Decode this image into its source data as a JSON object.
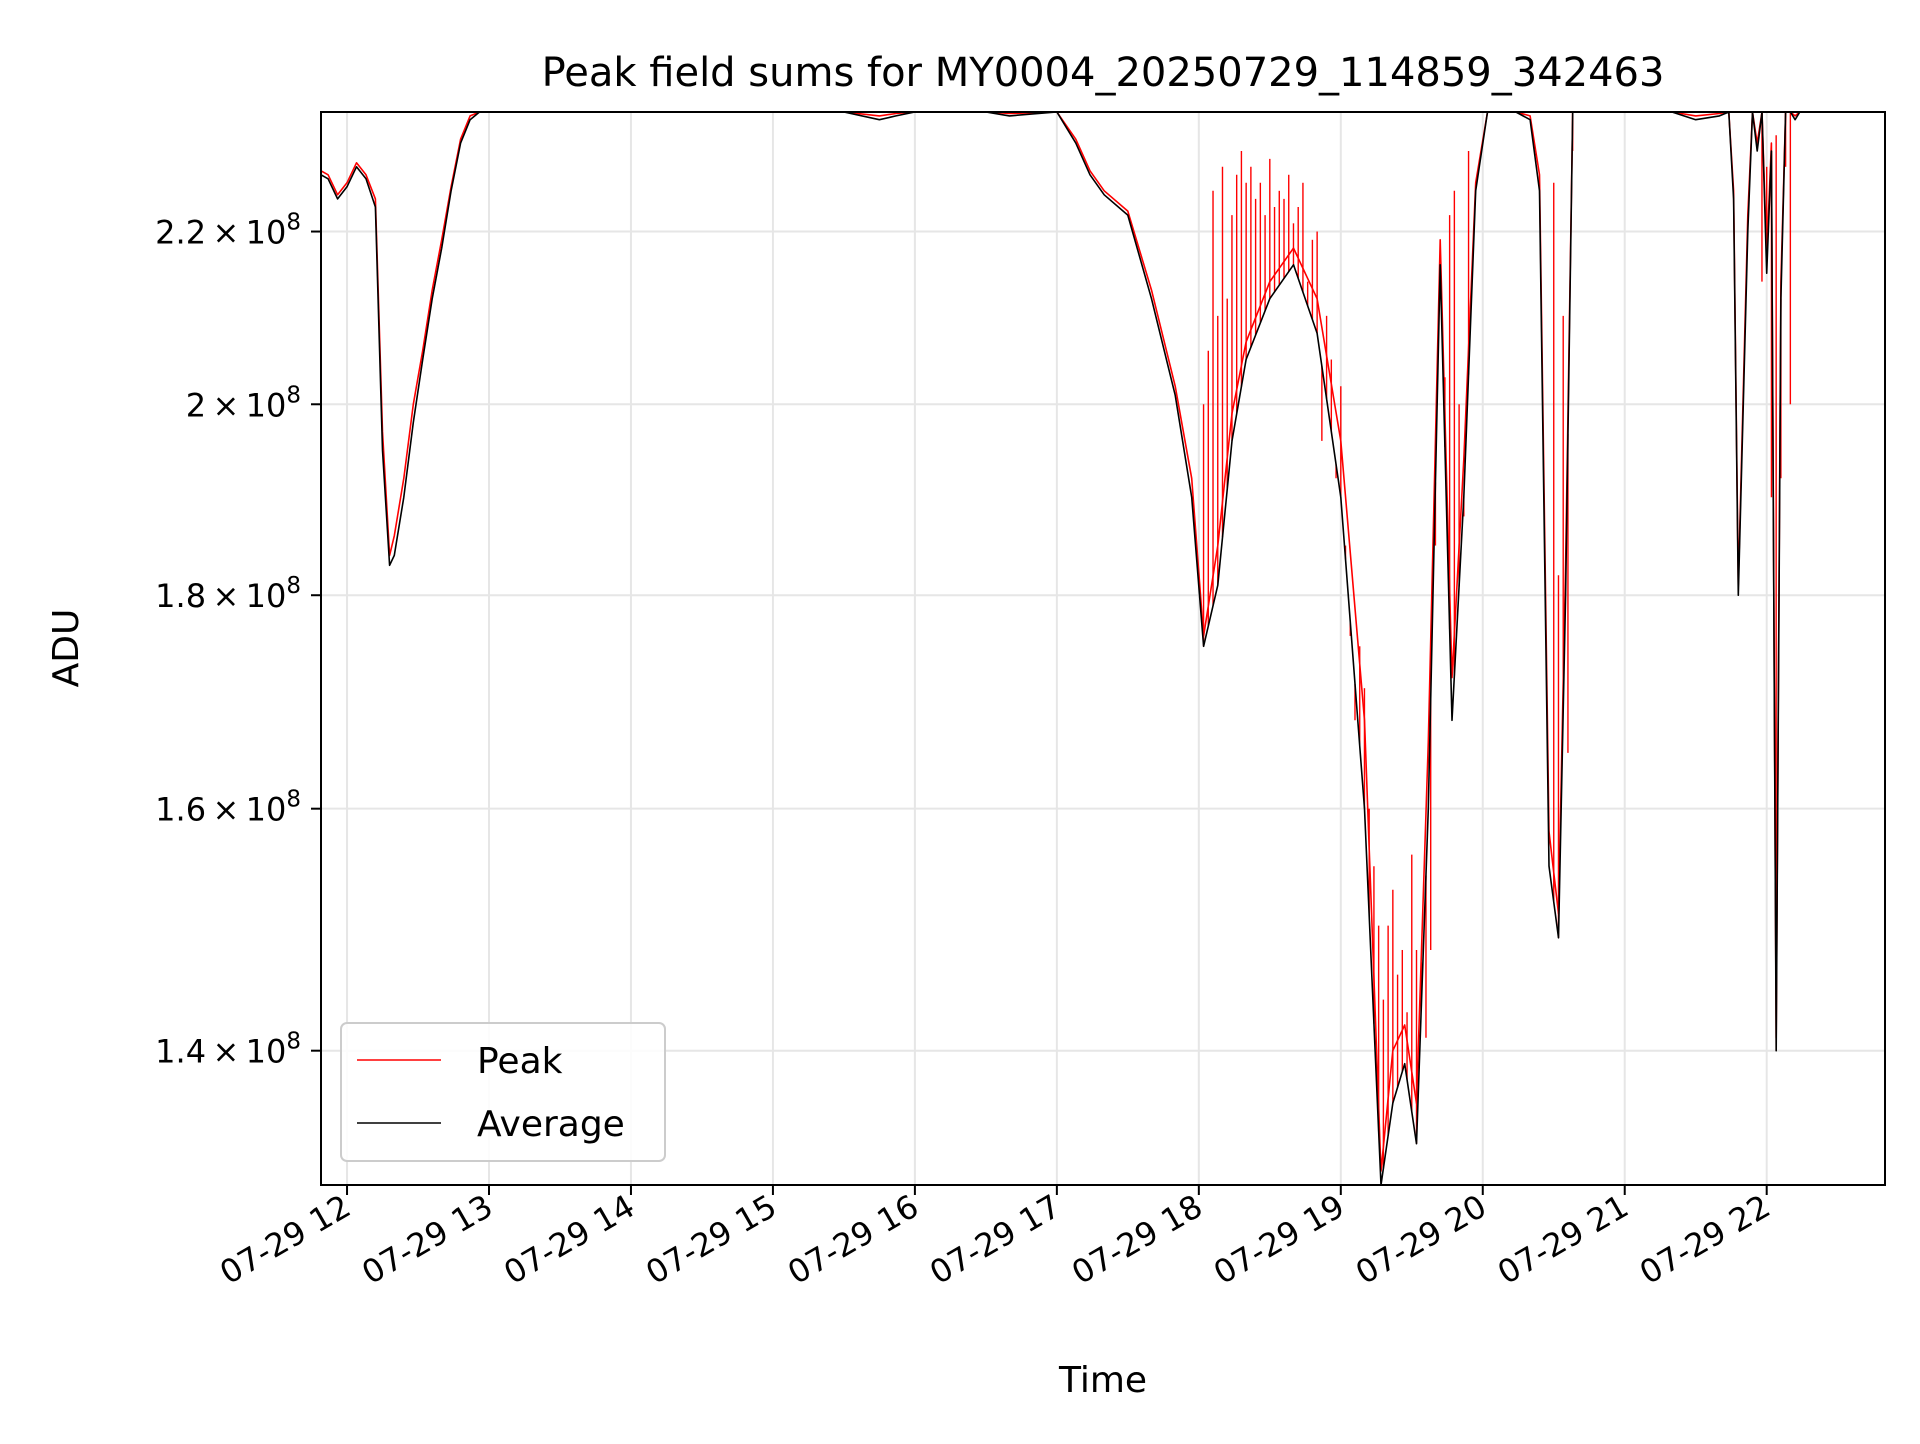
{
  "chart_data": {
    "type": "line",
    "title": "Peak field sums for MY0004_20250729_114859_342463",
    "xlabel": "Time",
    "ylabel": "ADU",
    "y_scale": "log",
    "ylim": [
      130000000,
      235000000
    ],
    "xlim": [
      "2025-07-29T11:49",
      "2025-07-29T22:50"
    ],
    "grid": true,
    "legend_position": "lower left",
    "x_ticks": [
      "07-29 12",
      "07-29 13",
      "07-29 14",
      "07-29 15",
      "07-29 16",
      "07-29 17",
      "07-29 18",
      "07-29 19",
      "07-29 20",
      "07-29 21",
      "07-29 22"
    ],
    "x_tick_values": [
      "2025-07-29T12:00",
      "2025-07-29T13:00",
      "2025-07-29T14:00",
      "2025-07-29T15:00",
      "2025-07-29T16:00",
      "2025-07-29T17:00",
      "2025-07-29T18:00",
      "2025-07-29T19:00",
      "2025-07-29T20:00",
      "2025-07-29T21:00",
      "2025-07-29T22:00"
    ],
    "y_ticks": [
      {
        "value": 140000000,
        "mantissa": "1.4",
        "exp": "8"
      },
      {
        "value": 160000000,
        "mantissa": "1.6",
        "exp": "8"
      },
      {
        "value": 180000000,
        "mantissa": "1.8",
        "exp": "8"
      },
      {
        "value": 200000000,
        "mantissa": "2",
        "exp": "8"
      },
      {
        "value": 220000000,
        "mantissa": "2.2",
        "exp": "8"
      }
    ],
    "series": [
      {
        "name": "Average",
        "color": "#000000",
        "x": [
          "2025-07-29T11:49",
          "2025-07-29T11:52",
          "2025-07-29T11:56",
          "2025-07-29T12:00",
          "2025-07-29T12:04",
          "2025-07-29T12:08",
          "2025-07-29T12:12",
          "2025-07-29T12:15",
          "2025-07-29T12:18",
          "2025-07-29T12:20",
          "2025-07-29T12:24",
          "2025-07-29T12:28",
          "2025-07-29T12:32",
          "2025-07-29T12:36",
          "2025-07-29T12:40",
          "2025-07-29T12:44",
          "2025-07-29T12:48",
          "2025-07-29T12:52",
          "2025-07-29T12:56",
          "2025-07-29T13:00",
          "2025-07-29T15:30",
          "2025-07-29T15:45",
          "2025-07-29T15:52",
          "2025-07-29T16:00",
          "2025-07-29T16:30",
          "2025-07-29T16:40",
          "2025-07-29T17:00",
          "2025-07-29T17:08",
          "2025-07-29T17:14",
          "2025-07-29T17:20",
          "2025-07-29T17:30",
          "2025-07-29T17:40",
          "2025-07-29T17:50",
          "2025-07-29T17:57",
          "2025-07-29T18:02",
          "2025-07-29T18:08",
          "2025-07-29T18:14",
          "2025-07-29T18:20",
          "2025-07-29T18:30",
          "2025-07-29T18:40",
          "2025-07-29T18:50",
          "2025-07-29T19:00",
          "2025-07-29T19:10",
          "2025-07-29T19:17",
          "2025-07-29T19:22",
          "2025-07-29T19:27",
          "2025-07-29T19:32",
          "2025-07-29T19:37",
          "2025-07-29T19:42",
          "2025-07-29T19:47",
          "2025-07-29T19:52",
          "2025-07-29T19:57",
          "2025-07-29T20:02",
          "2025-07-29T20:08",
          "2025-07-29T20:14",
          "2025-07-29T20:20",
          "2025-07-29T20:24",
          "2025-07-29T20:28",
          "2025-07-29T20:32",
          "2025-07-29T20:35",
          "2025-07-29T20:38",
          "2025-07-29T20:41",
          "2025-07-29T20:45",
          "2025-07-29T20:52",
          "2025-07-29T21:05",
          "2025-07-29T21:20",
          "2025-07-29T21:30",
          "2025-07-29T21:40",
          "2025-07-29T21:44",
          "2025-07-29T21:46",
          "2025-07-29T21:48",
          "2025-07-29T21:52",
          "2025-07-29T21:54",
          "2025-07-29T21:56",
          "2025-07-29T21:58",
          "2025-07-29T22:00",
          "2025-07-29T22:02",
          "2025-07-29T22:04",
          "2025-07-29T22:06",
          "2025-07-29T22:08",
          "2025-07-29T22:10",
          "2025-07-29T22:12",
          "2025-07-29T22:14",
          "2025-07-29T22:16",
          "2025-07-29T22:18",
          "2025-07-29T22:20",
          "2025-07-29T22:22",
          "2025-07-29T22:26",
          "2025-07-29T22:35",
          "2025-07-29T22:50"
        ],
        "values": [
          227000000,
          226500000,
          224000000,
          225500000,
          228000000,
          226500000,
          223000000,
          195000000,
          183000000,
          184000000,
          190000000,
          198000000,
          205000000,
          212000000,
          218000000,
          225000000,
          231000000,
          234000000,
          235000000,
          235000000,
          235000000,
          234000000,
          234500000,
          235000000,
          235000000,
          234500000,
          235000000,
          231000000,
          227000000,
          224500000,
          222000000,
          212000000,
          201000000,
          190000000,
          175000000,
          181000000,
          196000000,
          205000000,
          212000000,
          216000000,
          208000000,
          190000000,
          160000000,
          130000000,
          136000000,
          139000000,
          133000000,
          160000000,
          216000000,
          168000000,
          190000000,
          225000000,
          235000000,
          235000000,
          235000000,
          234000000,
          225000000,
          155000000,
          149000000,
          180000000,
          235000000,
          235000000,
          235000000,
          235000000,
          235000000,
          235000000,
          234000000,
          234500000,
          235000000,
          224000000,
          180000000,
          220000000,
          235000000,
          230000000,
          235000000,
          215000000,
          230000000,
          140000000,
          212000000,
          235000000,
          235000000,
          234000000,
          235000000,
          235000000,
          235000000,
          235000000,
          235000000,
          235000000,
          235000000,
          235000000
        ]
      },
      {
        "name": "Peak",
        "color": "#ff0000",
        "x": [
          "2025-07-29T11:49",
          "2025-07-29T11:52",
          "2025-07-29T11:56",
          "2025-07-29T12:00",
          "2025-07-29T12:04",
          "2025-07-29T12:08",
          "2025-07-29T12:12",
          "2025-07-29T12:15",
          "2025-07-29T12:18",
          "2025-07-29T12:20",
          "2025-07-29T12:24",
          "2025-07-29T12:28",
          "2025-07-29T12:32",
          "2025-07-29T12:36",
          "2025-07-29T12:40",
          "2025-07-29T12:44",
          "2025-07-29T12:48",
          "2025-07-29T12:52",
          "2025-07-29T12:56",
          "2025-07-29T13:00",
          "2025-07-29T15:30",
          "2025-07-29T15:45",
          "2025-07-29T15:52",
          "2025-07-29T16:00",
          "2025-07-29T16:30",
          "2025-07-29T16:40",
          "2025-07-29T17:00",
          "2025-07-29T17:08",
          "2025-07-29T17:14",
          "2025-07-29T17:20",
          "2025-07-29T17:30",
          "2025-07-29T17:40",
          "2025-07-29T17:50",
          "2025-07-29T17:57",
          "2025-07-29T18:02",
          "2025-07-29T18:08",
          "2025-07-29T18:14",
          "2025-07-29T18:20",
          "2025-07-29T18:30",
          "2025-07-29T18:40",
          "2025-07-29T18:50",
          "2025-07-29T19:00",
          "2025-07-29T19:10",
          "2025-07-29T19:17",
          "2025-07-29T19:22",
          "2025-07-29T19:27",
          "2025-07-29T19:32",
          "2025-07-29T19:37",
          "2025-07-29T19:42",
          "2025-07-29T19:47",
          "2025-07-29T19:52",
          "2025-07-29T19:57",
          "2025-07-29T20:02",
          "2025-07-29T20:08",
          "2025-07-29T20:14",
          "2025-07-29T20:20",
          "2025-07-29T20:24",
          "2025-07-29T20:28",
          "2025-07-29T20:32",
          "2025-07-29T20:35",
          "2025-07-29T20:38",
          "2025-07-29T20:41",
          "2025-07-29T20:45",
          "2025-07-29T20:52",
          "2025-07-29T21:05",
          "2025-07-29T21:20",
          "2025-07-29T21:30",
          "2025-07-29T21:40",
          "2025-07-29T21:44",
          "2025-07-29T21:46",
          "2025-07-29T21:48",
          "2025-07-29T21:52",
          "2025-07-29T21:54",
          "2025-07-29T21:56",
          "2025-07-29T21:58",
          "2025-07-29T22:00",
          "2025-07-29T22:02",
          "2025-07-29T22:04",
          "2025-07-29T22:06",
          "2025-07-29T22:08",
          "2025-07-29T22:10",
          "2025-07-29T22:12",
          "2025-07-29T22:14",
          "2025-07-29T22:16",
          "2025-07-29T22:18",
          "2025-07-29T22:20",
          "2025-07-29T22:22",
          "2025-07-29T22:26",
          "2025-07-29T22:35",
          "2025-07-29T22:50"
        ],
        "values": [
          227500000,
          227000000,
          224500000,
          226000000,
          228500000,
          227000000,
          224000000,
          197000000,
          184000000,
          186000000,
          192000000,
          200000000,
          206000000,
          213000000,
          219000000,
          225500000,
          231500000,
          234500000,
          235000000,
          235000000,
          235000000,
          234500000,
          234800000,
          235000000,
          235000000,
          234800000,
          235000000,
          231500000,
          227500000,
          225000000,
          222500000,
          213000000,
          202000000,
          192000000,
          176000000,
          185000000,
          199000000,
          207000000,
          214000000,
          218000000,
          212000000,
          196000000,
          168000000,
          131000000,
          140000000,
          142000000,
          136000000,
          166000000,
          219000000,
          172000000,
          194000000,
          226000000,
          235000000,
          235000000,
          235000000,
          234500000,
          227000000,
          158000000,
          151000000,
          183000000,
          235000000,
          235000000,
          235000000,
          235000000,
          235000000,
          235000000,
          234500000,
          234800000,
          235000000,
          225000000,
          181000000,
          222000000,
          235000000,
          231000000,
          235000000,
          217000000,
          231000000,
          141000000,
          214000000,
          235000000,
          235000000,
          234500000,
          235000000,
          235000000,
          235000000,
          235000000,
          235000000,
          235000000,
          235000000,
          235000000
        ]
      }
    ],
    "peak_spikes": {
      "x": [
        "2025-07-29T18:02",
        "2025-07-29T18:04",
        "2025-07-29T18:06",
        "2025-07-29T18:08",
        "2025-07-29T18:10",
        "2025-07-29T18:12",
        "2025-07-29T18:14",
        "2025-07-29T18:16",
        "2025-07-29T18:18",
        "2025-07-29T18:20",
        "2025-07-29T18:22",
        "2025-07-29T18:24",
        "2025-07-29T18:26",
        "2025-07-29T18:28",
        "2025-07-29T18:30",
        "2025-07-29T18:32",
        "2025-07-29T18:34",
        "2025-07-29T18:36",
        "2025-07-29T18:38",
        "2025-07-29T18:40",
        "2025-07-29T18:42",
        "2025-07-29T18:44",
        "2025-07-29T18:46",
        "2025-07-29T18:48",
        "2025-07-29T18:50",
        "2025-07-29T18:52",
        "2025-07-29T18:54",
        "2025-07-29T18:56",
        "2025-07-29T18:58",
        "2025-07-29T19:00",
        "2025-07-29T19:02",
        "2025-07-29T19:04",
        "2025-07-29T19:06",
        "2025-07-29T19:08",
        "2025-07-29T19:10",
        "2025-07-29T19:12",
        "2025-07-29T19:14",
        "2025-07-29T19:16",
        "2025-07-29T19:18",
        "2025-07-29T19:20",
        "2025-07-29T19:22",
        "2025-07-29T19:24",
        "2025-07-29T19:26",
        "2025-07-29T19:28",
        "2025-07-29T19:30",
        "2025-07-29T19:32",
        "2025-07-29T19:34",
        "2025-07-29T19:36",
        "2025-07-29T19:38",
        "2025-07-29T19:40",
        "2025-07-29T19:44",
        "2025-07-29T19:46",
        "2025-07-29T19:48",
        "2025-07-29T19:50",
        "2025-07-29T19:52",
        "2025-07-29T19:54",
        "2025-07-29T20:30",
        "2025-07-29T20:32",
        "2025-07-29T20:34",
        "2025-07-29T20:36",
        "2025-07-29T20:38",
        "2025-07-29T21:58",
        "2025-07-29T22:00",
        "2025-07-29T22:02",
        "2025-07-29T22:04",
        "2025-07-29T22:06",
        "2025-07-29T22:08",
        "2025-07-29T22:10"
      ],
      "values": [
        200000000,
        206000000,
        225000000,
        210000000,
        228000000,
        212000000,
        222000000,
        227000000,
        230000000,
        226000000,
        228000000,
        224000000,
        226000000,
        222000000,
        229000000,
        223000000,
        225000000,
        224000000,
        227000000,
        221000000,
        223000000,
        226000000,
        214000000,
        219000000,
        220000000,
        196000000,
        210000000,
        205000000,
        192000000,
        202000000,
        185000000,
        176000000,
        168000000,
        175000000,
        171000000,
        160000000,
        155000000,
        150000000,
        144000000,
        150000000,
        153000000,
        146000000,
        148000000,
        143000000,
        156000000,
        148000000,
        147000000,
        141000000,
        148000000,
        185000000,
        203000000,
        222000000,
        225000000,
        200000000,
        188000000,
        230000000,
        226000000,
        182000000,
        210000000,
        165000000,
        230000000,
        214000000,
        228000000,
        190000000,
        232000000,
        192000000,
        228000000,
        200000000
      ]
    }
  }
}
